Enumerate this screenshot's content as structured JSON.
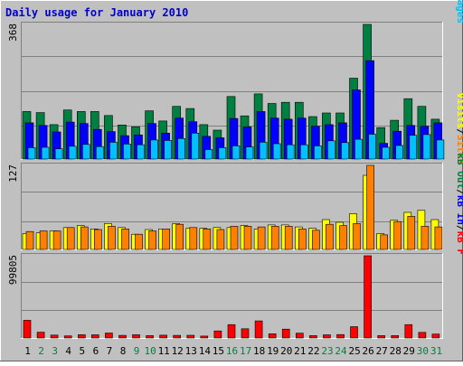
{
  "title": "Daily usage for January 2010",
  "colors": {
    "frame_bg": "#c0c0c0",
    "panel_bg": "#c0c0c0",
    "title_text": "#0000cc",
    "hits": "#008040",
    "files": "#0000ff",
    "pages": "#00c0ff",
    "visits": "#ffff00",
    "sites": "#ff8000",
    "kb_in": "#0000ff",
    "kb_out": "#008040",
    "kb_f": "#ff0000",
    "weekday_label": "#000000",
    "weekend_label": "#008040"
  },
  "chart_data": [
    {
      "type": "bar",
      "panel": "top",
      "y_max_label": "368",
      "ylim": [
        0,
        368
      ],
      "legend": [
        "Pages",
        "Files",
        "Hits"
      ],
      "categories": [
        "1",
        "2",
        "3",
        "4",
        "5",
        "6",
        "7",
        "8",
        "9",
        "10",
        "11",
        "12",
        "13",
        "14",
        "15",
        "16",
        "17",
        "18",
        "19",
        "20",
        "21",
        "22",
        "23",
        "24",
        "25",
        "26",
        "27",
        "28",
        "29",
        "30",
        "31"
      ],
      "weekend": [
        false,
        true,
        true,
        false,
        false,
        false,
        false,
        false,
        true,
        true,
        false,
        false,
        false,
        false,
        false,
        true,
        true,
        false,
        false,
        false,
        false,
        false,
        true,
        true,
        false,
        false,
        false,
        false,
        false,
        true,
        true
      ],
      "series": [
        {
          "name": "Hits",
          "values": [
            130,
            127,
            94,
            134,
            130,
            130,
            119,
            93,
            88,
            132,
            104,
            144,
            138,
            94,
            79,
            171,
            118,
            178,
            152,
            155,
            155,
            116,
            126,
            126,
            221,
            368,
            86,
            106,
            165,
            144,
            109
          ]
        },
        {
          "name": "Files",
          "values": [
            99,
            92,
            74,
            101,
            97,
            81,
            75,
            64,
            66,
            97,
            71,
            112,
            102,
            62,
            58,
            111,
            88,
            130,
            112,
            109,
            112,
            90,
            94,
            99,
            189,
            269,
            43,
            76,
            92,
            90,
            99
          ]
        },
        {
          "name": "Pages",
          "values": [
            31,
            32,
            28,
            35,
            40,
            34,
            46,
            41,
            39,
            52,
            51,
            56,
            71,
            26,
            31,
            36,
            33,
            46,
            42,
            39,
            39,
            36,
            50,
            45,
            54,
            68,
            32,
            37,
            65,
            67,
            52
          ]
        }
      ]
    },
    {
      "type": "bar",
      "panel": "middle",
      "y_max_label": "127",
      "ylim": [
        0,
        127
      ],
      "legend": [
        "Sites",
        "Visits"
      ],
      "categories": [
        "1",
        "2",
        "3",
        "4",
        "5",
        "6",
        "7",
        "8",
        "9",
        "10",
        "11",
        "12",
        "13",
        "14",
        "15",
        "16",
        "17",
        "18",
        "19",
        "20",
        "21",
        "22",
        "23",
        "24",
        "25",
        "26",
        "27",
        "28",
        "29",
        "30",
        "31"
      ],
      "series": [
        {
          "name": "Visits",
          "values": [
            24,
            25,
            28,
            33,
            36,
            31,
            39,
            33,
            23,
            30,
            31,
            39,
            32,
            32,
            33,
            33,
            36,
            31,
            37,
            37,
            34,
            32,
            45,
            41,
            54,
            112,
            24,
            44,
            56,
            59,
            45
          ]
        },
        {
          "name": "Sites",
          "values": [
            27,
            28,
            28,
            33,
            34,
            30,
            35,
            31,
            23,
            28,
            31,
            38,
            33,
            31,
            30,
            35,
            35,
            34,
            35,
            35,
            31,
            29,
            38,
            36,
            39,
            127,
            22,
            42,
            50,
            35,
            34
          ]
        }
      ]
    },
    {
      "type": "bar",
      "panel": "bottom",
      "y_max_label": "99805",
      "ylim": [
        0,
        99805
      ],
      "legend": [
        "kB F",
        "kB In",
        "kB Out"
      ],
      "categories": [
        "1",
        "2",
        "3",
        "4",
        "5",
        "6",
        "7",
        "8",
        "9",
        "10",
        "11",
        "12",
        "13",
        "14",
        "15",
        "16",
        "17",
        "18",
        "19",
        "20",
        "21",
        "22",
        "23",
        "24",
        "25",
        "26",
        "27",
        "28",
        "29",
        "30",
        "31"
      ],
      "series": [
        {
          "name": "kB F",
          "values": [
            21500,
            7000,
            3500,
            2500,
            4000,
            3800,
            6000,
            3200,
            4000,
            2800,
            3400,
            3200,
            3300,
            2300,
            8600,
            16200,
            11200,
            20700,
            5000,
            10700,
            5800,
            2800,
            3800,
            4200,
            13700,
            99805,
            2900,
            2800,
            16200,
            6800,
            4700
          ]
        }
      ]
    }
  ]
}
